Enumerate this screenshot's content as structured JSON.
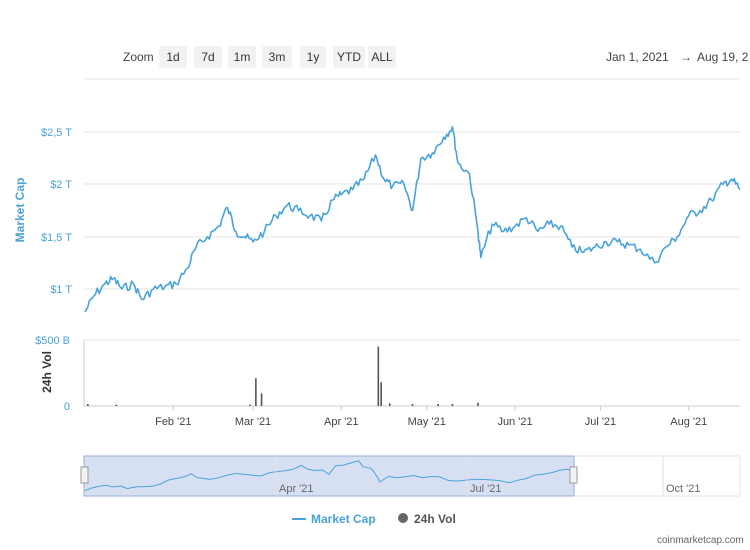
{
  "zoom": {
    "label": "Zoom",
    "buttons": [
      "1d",
      "7d",
      "1m",
      "3m",
      "1y",
      "YTD",
      "ALL"
    ]
  },
  "range": {
    "from": "Jan 1, 2021",
    "to": "Aug 19, 2"
  },
  "legend": {
    "market_cap": "Market Cap",
    "vol": "24h Vol"
  },
  "credit": "coinmarketcap.com",
  "colors": {
    "line": "#4aa3d8",
    "volume": "#555555",
    "navigator_fill": "#c9d6ee"
  },
  "chart_data": {
    "type": "line",
    "ylabel": "Market Cap",
    "y2label": "24h Vol",
    "y_ticks": [
      "$1 T",
      "$1,5 T",
      "$2 T",
      "$2,5 T"
    ],
    "y2_ticks": [
      "0",
      "$500 B"
    ],
    "x_ticks": [
      "Feb '21",
      "Mar '21",
      "Apr '21",
      "May '21",
      "Jun '21",
      "Jul '21",
      "Aug '21"
    ],
    "navigator_ticks": [
      "Apr '21",
      "Jul '21",
      "Oct '21"
    ],
    "x_range": [
      "2021-01-01",
      "2021-08-19"
    ],
    "series": [
      {
        "name": "Market Cap",
        "unit": "T",
        "x": [
          "2021-01-01",
          "2021-01-04",
          "2021-01-08",
          "2021-01-11",
          "2021-01-14",
          "2021-01-18",
          "2021-01-21",
          "2021-01-25",
          "2021-01-29",
          "2021-02-02",
          "2021-02-06",
          "2021-02-09",
          "2021-02-13",
          "2021-02-17",
          "2021-02-20",
          "2021-02-23",
          "2021-02-26",
          "2021-03-01",
          "2021-03-05",
          "2021-03-09",
          "2021-03-13",
          "2021-03-17",
          "2021-03-21",
          "2021-03-25",
          "2021-03-29",
          "2021-04-01",
          "2021-04-05",
          "2021-04-09",
          "2021-04-13",
          "2021-04-16",
          "2021-04-19",
          "2021-04-23",
          "2021-04-26",
          "2021-04-29",
          "2021-05-03",
          "2021-05-07",
          "2021-05-10",
          "2021-05-12",
          "2021-05-16",
          "2021-05-19",
          "2021-05-20",
          "2021-05-24",
          "2021-05-28",
          "2021-06-01",
          "2021-06-05",
          "2021-06-09",
          "2021-06-13",
          "2021-06-17",
          "2021-06-21",
          "2021-06-25",
          "2021-06-29",
          "2021-07-03",
          "2021-07-07",
          "2021-07-11",
          "2021-07-15",
          "2021-07-20",
          "2021-07-24",
          "2021-07-28",
          "2021-08-01",
          "2021-08-05",
          "2021-08-09",
          "2021-08-13",
          "2021-08-16",
          "2021-08-19"
        ],
        "values": [
          0.78,
          0.93,
          1.05,
          1.1,
          1.0,
          1.05,
          0.9,
          1.0,
          1.02,
          1.05,
          1.2,
          1.4,
          1.5,
          1.6,
          1.78,
          1.55,
          1.5,
          1.45,
          1.55,
          1.7,
          1.8,
          1.75,
          1.7,
          1.65,
          1.85,
          1.9,
          1.95,
          2.05,
          2.28,
          2.05,
          1.98,
          2.0,
          1.75,
          2.25,
          2.3,
          2.45,
          2.55,
          2.2,
          2.1,
          1.55,
          1.3,
          1.62,
          1.55,
          1.6,
          1.68,
          1.55,
          1.62,
          1.6,
          1.4,
          1.35,
          1.4,
          1.45,
          1.45,
          1.42,
          1.38,
          1.25,
          1.4,
          1.5,
          1.7,
          1.75,
          1.85,
          2.0,
          2.05,
          1.95
        ]
      },
      {
        "name": "24h Vol",
        "unit": "B",
        "x": [
          "2021-01-02",
          "2021-01-12",
          "2021-02-28",
          "2021-03-02",
          "2021-03-04",
          "2021-04-14",
          "2021-04-15",
          "2021-04-18",
          "2021-04-26",
          "2021-05-05",
          "2021-05-10",
          "2021-05-19"
        ],
        "values": [
          15,
          10,
          10,
          210,
          95,
          450,
          180,
          20,
          15,
          15,
          15,
          25
        ]
      }
    ]
  }
}
